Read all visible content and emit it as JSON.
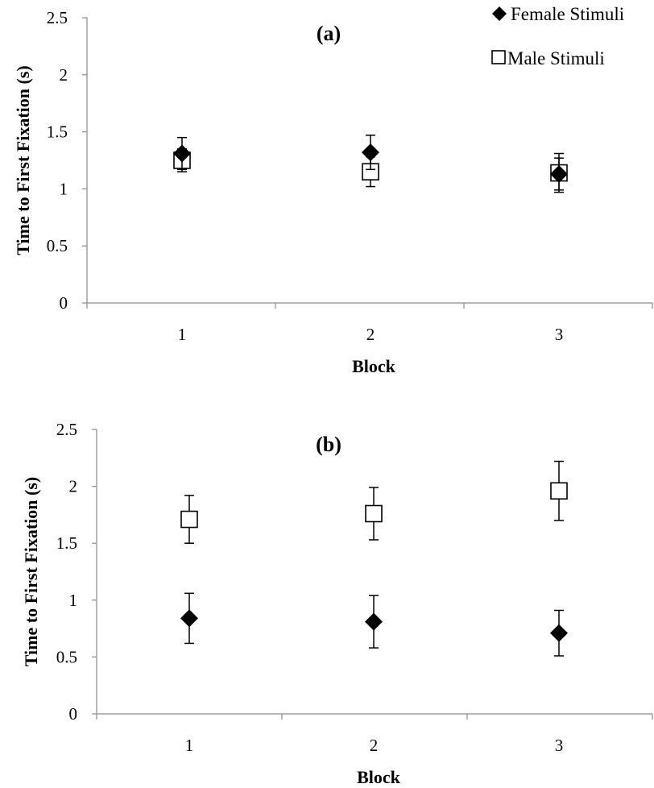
{
  "legend": {
    "female_label": "Female Stimuli",
    "male_label": "Male Stimuli"
  },
  "colors": {
    "axis": "#8a8a8a",
    "female_fill": "#000000",
    "male_fill": "#ffffff",
    "male_stroke": "#000000",
    "error_bar": "#000000"
  },
  "chart_data": [
    {
      "type": "scatter",
      "panel_label": "(a)",
      "xlabel": "Block",
      "ylabel": "Time to First Fixation (s)",
      "categories": [
        "1",
        "2",
        "3"
      ],
      "ylim": [
        0,
        2.5
      ],
      "yticks": [
        "0",
        "0.5",
        "1",
        "1.5",
        "2",
        "2.5"
      ],
      "grid": false,
      "legend_position": "top-right",
      "series": [
        {
          "name": "Female Stimuli",
          "marker": "filled-diamond",
          "values": [
            1.31,
            1.32,
            1.13
          ],
          "error": [
            0.14,
            0.15,
            0.14
          ]
        },
        {
          "name": "Male Stimuli",
          "marker": "open-square",
          "values": [
            1.25,
            1.15,
            1.14
          ],
          "error": [
            0.1,
            0.13,
            0.17
          ]
        }
      ]
    },
    {
      "type": "scatter",
      "panel_label": "(b)",
      "xlabel": "Block",
      "ylabel": "Time to First Fixation (s)",
      "categories": [
        "1",
        "2",
        "3"
      ],
      "ylim": [
        0,
        2.5
      ],
      "yticks": [
        "0",
        "0.5",
        "1",
        "1.5",
        "2",
        "2.5"
      ],
      "grid": false,
      "series": [
        {
          "name": "Female Stimuli",
          "marker": "filled-diamond",
          "values": [
            0.84,
            0.81,
            0.71
          ],
          "error": [
            0.22,
            0.23,
            0.2
          ]
        },
        {
          "name": "Male Stimuli",
          "marker": "open-square",
          "values": [
            1.71,
            1.76,
            1.96
          ],
          "error": [
            0.21,
            0.23,
            0.26
          ]
        }
      ]
    }
  ]
}
